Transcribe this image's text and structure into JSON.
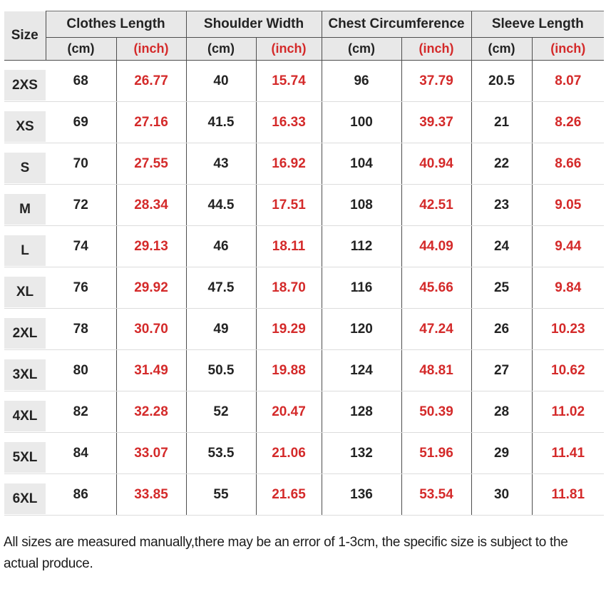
{
  "table": {
    "size_header": "Size",
    "groups": [
      {
        "label": "Clothes Length"
      },
      {
        "label": "Shoulder Width"
      },
      {
        "label": "Chest Circumference"
      },
      {
        "label": "Sleeve Length"
      }
    ],
    "unit_cm": "(cm)",
    "unit_inch": "(inch)",
    "rows": [
      {
        "size": "2XS",
        "values": [
          "68",
          "26.77",
          "40",
          "15.74",
          "96",
          "37.79",
          "20.5",
          "8.07"
        ]
      },
      {
        "size": "XS",
        "values": [
          "69",
          "27.16",
          "41.5",
          "16.33",
          "100",
          "39.37",
          "21",
          "8.26"
        ]
      },
      {
        "size": "S",
        "values": [
          "70",
          "27.55",
          "43",
          "16.92",
          "104",
          "40.94",
          "22",
          "8.66"
        ]
      },
      {
        "size": "M",
        "values": [
          "72",
          "28.34",
          "44.5",
          "17.51",
          "108",
          "42.51",
          "23",
          "9.05"
        ]
      },
      {
        "size": "L",
        "values": [
          "74",
          "29.13",
          "46",
          "18.11",
          "112",
          "44.09",
          "24",
          "9.44"
        ]
      },
      {
        "size": "XL",
        "values": [
          "76",
          "29.92",
          "47.5",
          "18.70",
          "116",
          "45.66",
          "25",
          "9.84"
        ]
      },
      {
        "size": "2XL",
        "values": [
          "78",
          "30.70",
          "49",
          "19.29",
          "120",
          "47.24",
          "26",
          "10.23"
        ]
      },
      {
        "size": "3XL",
        "values": [
          "80",
          "31.49",
          "50.5",
          "19.88",
          "124",
          "48.81",
          "27",
          "10.62"
        ]
      },
      {
        "size": "4XL",
        "values": [
          "82",
          "32.28",
          "52",
          "20.47",
          "128",
          "50.39",
          "28",
          "11.02"
        ]
      },
      {
        "size": "5XL",
        "values": [
          "84",
          "33.07",
          "53.5",
          "21.06",
          "132",
          "51.96",
          "29",
          "11.41"
        ]
      },
      {
        "size": "6XL",
        "values": [
          "86",
          "33.85",
          "55",
          "21.65",
          "136",
          "53.54",
          "30",
          "11.81"
        ]
      }
    ]
  },
  "footer": {
    "note": "All sizes are measured manually,there may be an error of 1-3cm, the specific size is subject to the actual produce."
  },
  "colors": {
    "accent_red": "#d42a2a",
    "header_bg": "#e8e8e8",
    "badge_bg": "#eaeaea",
    "line_dark": "#4d4d4d",
    "line_light": "#dcdcdc",
    "text_dark": "#232323"
  }
}
